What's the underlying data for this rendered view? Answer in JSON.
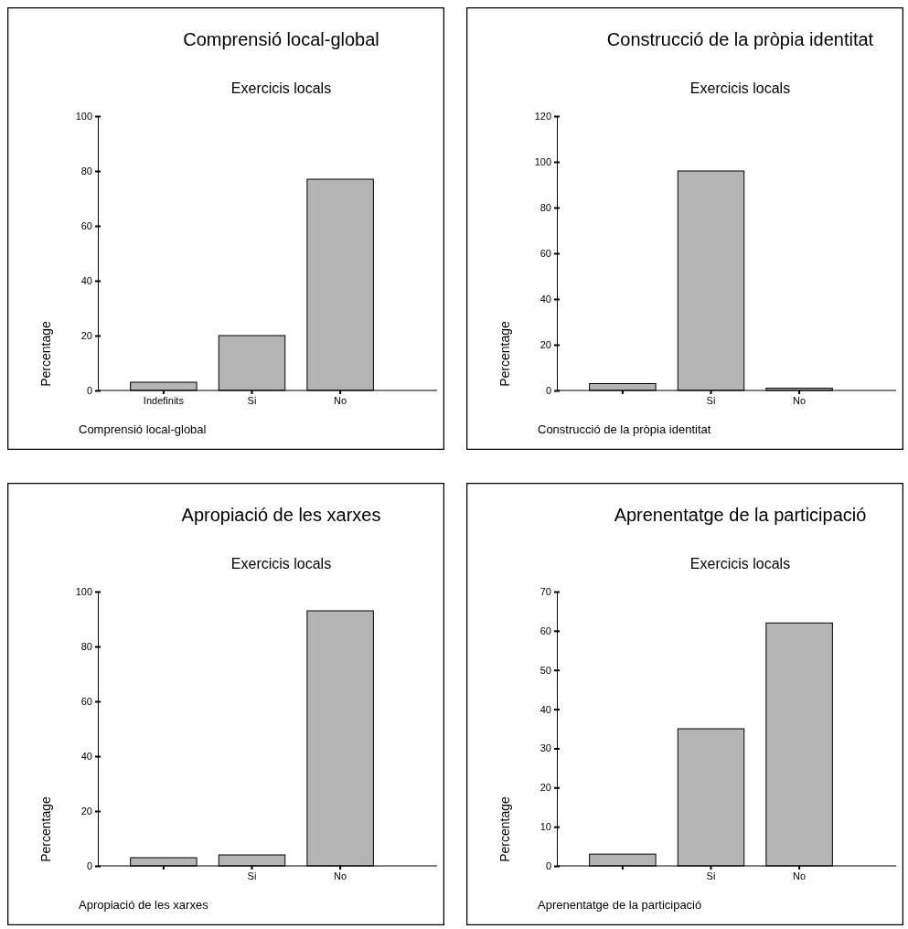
{
  "chart_data": [
    {
      "type": "bar",
      "title": "Comprensió local-global",
      "subtitle": "Exercicis locals",
      "xlabel": "Comprensió local-global",
      "ylabel": "Percentage",
      "categories": [
        "Indefinits",
        "Si",
        "No"
      ],
      "values": [
        3,
        20,
        77
      ],
      "color": "#b4b4b4",
      "ylim": [
        0,
        100
      ],
      "yticks": [
        0,
        20,
        40,
        60,
        80,
        100
      ]
    },
    {
      "type": "bar",
      "title": "Construcció de la pròpia identitat",
      "subtitle": "Exercicis locals",
      "xlabel": "Construcció de la pròpia identitat",
      "ylabel": "Percentage",
      "categories": [
        null,
        "Si",
        "No"
      ],
      "values": [
        3,
        96,
        1
      ],
      "color": "#b4b4b4",
      "ylim": [
        0,
        120
      ],
      "yticks": [
        0,
        20,
        40,
        60,
        80,
        100,
        120
      ]
    },
    {
      "type": "bar",
      "title": "Apropiació de les xarxes",
      "subtitle": "Exercicis locals",
      "xlabel": "Apropiació de les xarxes",
      "ylabel": "Percentage",
      "categories": [
        null,
        "Si",
        "No"
      ],
      "values": [
        3,
        4,
        93
      ],
      "color": "#b4b4b4",
      "ylim": [
        0,
        100
      ],
      "yticks": [
        0,
        20,
        40,
        60,
        80,
        100
      ]
    },
    {
      "type": "bar",
      "title": "Aprenentatge de la participació",
      "subtitle": "Exercicis locals",
      "xlabel": "Aprenentatge de la participació",
      "ylabel": "Percentage",
      "categories": [
        null,
        "Si",
        "No"
      ],
      "values": [
        3,
        35,
        62
      ],
      "color": "#b4b4b4",
      "ylim": [
        0,
        70
      ],
      "yticks": [
        0,
        10,
        20,
        30,
        40,
        50,
        60,
        70
      ]
    }
  ]
}
